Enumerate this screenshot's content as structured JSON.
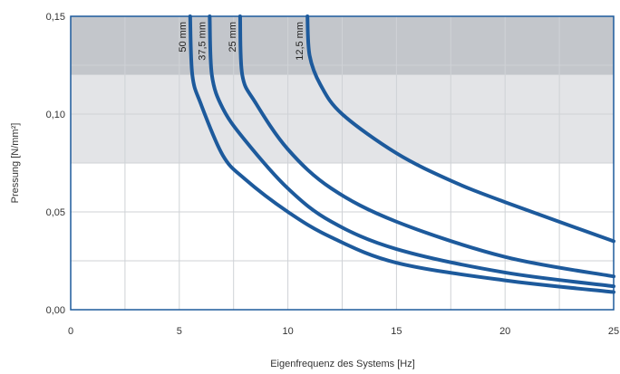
{
  "chart_data": {
    "type": "line",
    "title": "",
    "xlabel": "Eigenfrequenz des Systems [Hz]",
    "ylabel": "Pressung [N/mm²]",
    "xlim": [
      0,
      25
    ],
    "ylim": [
      0,
      0.15
    ],
    "x_ticks": [
      0,
      5,
      10,
      15,
      20,
      25
    ],
    "x_tick_labels": [
      "0",
      "5",
      "10",
      "15",
      "20",
      "25"
    ],
    "y_ticks": [
      0,
      0.05,
      0.1,
      0.15
    ],
    "y_tick_labels": [
      "0,00",
      "0,05",
      "0,10",
      "0,15"
    ],
    "grid": true,
    "bands": [
      {
        "y_from": 0.12,
        "y_to": 0.15,
        "color": "#c3c6cb"
      },
      {
        "y_from": 0.075,
        "y_to": 0.12,
        "color": "#e3e4e7"
      }
    ],
    "series_color": "#1d5a9c",
    "series": [
      {
        "name": "50 mm",
        "x": [
          5.5,
          5.6,
          6.0,
          7.0,
          8.0,
          10.0,
          12.0,
          15.0,
          20.0,
          25.0
        ],
        "y": [
          0.15,
          0.12,
          0.105,
          0.079,
          0.067,
          0.05,
          0.037,
          0.024,
          0.015,
          0.009
        ]
      },
      {
        "name": "37,5 mm",
        "x": [
          6.4,
          6.5,
          7.0,
          8.0,
          10.0,
          12.0,
          15.0,
          20.0,
          25.0
        ],
        "y": [
          0.15,
          0.12,
          0.103,
          0.087,
          0.062,
          0.045,
          0.031,
          0.019,
          0.012
        ]
      },
      {
        "name": "25 mm",
        "x": [
          7.8,
          7.9,
          8.5,
          10.0,
          12.0,
          15.0,
          20.0,
          25.0
        ],
        "y": [
          0.15,
          0.12,
          0.106,
          0.082,
          0.062,
          0.045,
          0.027,
          0.017
        ]
      },
      {
        "name": "12,5 mm",
        "x": [
          10.9,
          11.0,
          11.5,
          12.5,
          15.0,
          17.5,
          20.0,
          25.0
        ],
        "y": [
          0.15,
          0.13,
          0.115,
          0.1,
          0.08,
          0.066,
          0.055,
          0.035
        ]
      }
    ]
  }
}
